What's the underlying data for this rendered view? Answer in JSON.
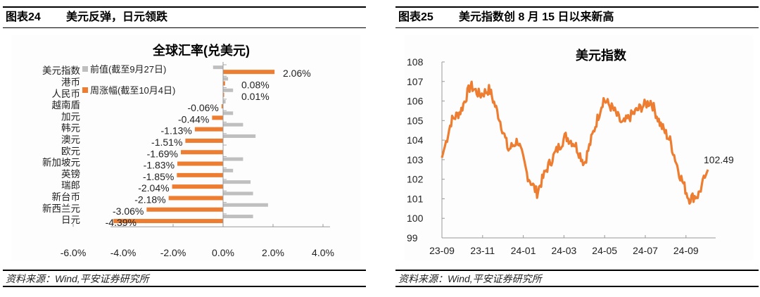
{
  "left_panel": {
    "figure_number": "图表24",
    "figure_title": "美元反弹，日元领跌",
    "source": "资料来源：Wind,平安证券研究所"
  },
  "right_panel": {
    "figure_number": "图表25",
    "figure_title": "美元指数创 8 月 15 日以来新高",
    "source": "资料来源：Wind,平安证券研究所"
  },
  "colors": {
    "orange": "#ED7D31",
    "gray": "#BFBFBF",
    "axis": "#999999"
  },
  "chart_data": [
    {
      "type": "bar",
      "orientation": "horizontal",
      "title": "全球汇率(兑美元)",
      "categories": [
        "美元指数",
        "港币",
        "人民币",
        "越南盾",
        "加元",
        "韩元",
        "澳元",
        "欧元",
        "新加坡元",
        "英镑",
        "瑞郎",
        "新台币",
        "新西兰元",
        "日元"
      ],
      "series": [
        {
          "name": "前值(截至9月27日)",
          "color": "#BFBFBF",
          "values": [
            -0.4,
            0.2,
            0.4,
            0.1,
            0.4,
            0.8,
            1.3,
            0.0,
            0.8,
            0.4,
            1.1,
            1.2,
            1.8,
            1.2
          ]
        },
        {
          "name": "周涨幅(截至10月4日)",
          "color": "#ED7D31",
          "values": [
            2.06,
            0.08,
            0.01,
            -0.06,
            -0.44,
            -1.13,
            -1.51,
            -1.69,
            -1.83,
            -1.85,
            -2.04,
            -2.18,
            -3.06,
            -4.39
          ],
          "labels": [
            "2.06%",
            "0.08%",
            "0.01%",
            "-0.06%",
            "-0.44%",
            "-1.13%",
            "-1.51%",
            "-1.69%",
            "-1.83%",
            "-1.85%",
            "-2.04%",
            "-2.18%",
            "-3.06%",
            "-4.39%"
          ]
        }
      ],
      "xlim": [
        -6.0,
        4.0
      ],
      "xticks": [
        "-6.0%",
        "-4.0%",
        "-2.0%",
        "0.0%",
        "2.0%",
        "4.0%"
      ],
      "legend_position": "upper-left",
      "grid": false
    },
    {
      "type": "line",
      "title": "美元指数",
      "xlabel": "",
      "ylabel": "",
      "ylim": [
        99,
        108
      ],
      "yticks": [
        "108",
        "107",
        "106",
        "105",
        "104",
        "103",
        "102",
        "101",
        "100",
        "99"
      ],
      "xticks": [
        "23-09",
        "23-11",
        "24-01",
        "24-03",
        "24-05",
        "24-07",
        "24-09"
      ],
      "series": [
        {
          "name": "美元指数",
          "color": "#ED7D31",
          "x": [
            "23-09",
            "23-09b",
            "23-10",
            "23-10b",
            "23-10c",
            "23-11",
            "23-11b",
            "23-12",
            "23-12b",
            "23-12c",
            "24-01",
            "24-01b",
            "24-02",
            "24-02b",
            "24-03",
            "24-03b",
            "24-04",
            "24-04b",
            "24-05",
            "24-05b",
            "24-06",
            "24-06b",
            "24-07",
            "24-07b",
            "24-08",
            "24-08b",
            "24-09",
            "24-09b",
            "24-10"
          ],
          "values": [
            103.1,
            105.0,
            105.5,
            106.8,
            106.3,
            106.6,
            105.2,
            103.5,
            104.0,
            102.2,
            101.3,
            102.5,
            103.4,
            104.2,
            103.8,
            102.8,
            104.5,
            106.1,
            105.6,
            104.8,
            105.3,
            105.7,
            106.0,
            104.8,
            104.0,
            102.3,
            101.0,
            101.2,
            102.49
          ]
        }
      ],
      "annotations": [
        {
          "text": "102.49",
          "at": "last point"
        }
      ],
      "grid": false
    }
  ]
}
